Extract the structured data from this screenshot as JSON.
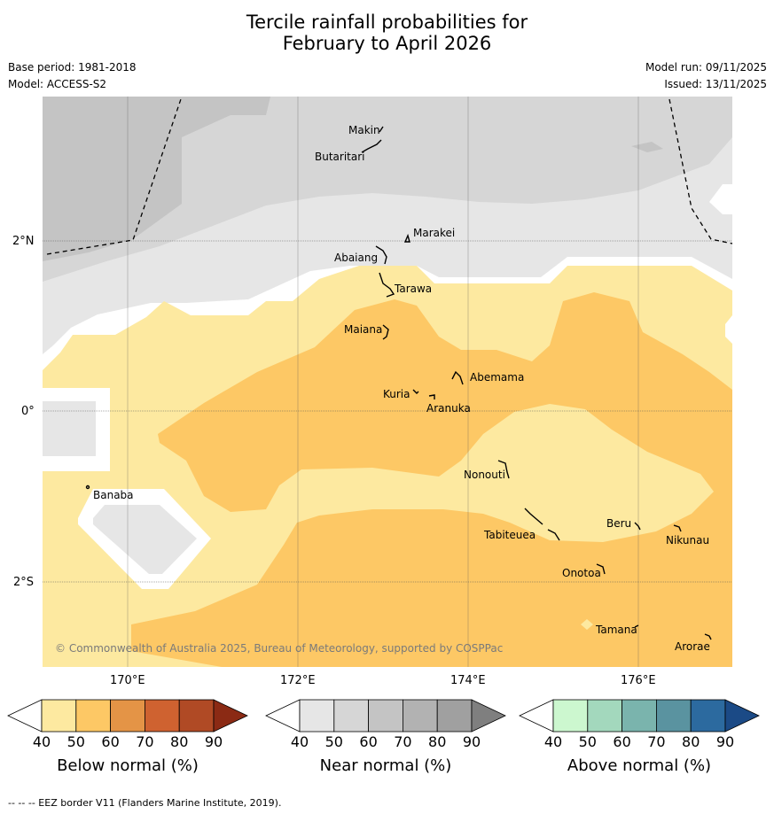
{
  "title_line1": "Tercile rainfall probabilities for",
  "title_line2": "February to April 2026",
  "base_period": "Base period: 1981-2018",
  "model": "Model: ACCESS-S2",
  "model_run": "Model run: 09/11/2025",
  "issued": "Issued: 13/11/2025",
  "copyright": "© Commonwealth of Australia 2025, Bureau of Meteorology, supported by COSPPac",
  "axes": {
    "lon_labels": [
      "170°E",
      "172°E",
      "174°E",
      "176°E"
    ],
    "lat_labels": [
      "2°N",
      "0°",
      "2°S"
    ]
  },
  "islands": [
    {
      "name": "Makin"
    },
    {
      "name": "Butaritari"
    },
    {
      "name": "Marakei"
    },
    {
      "name": "Abaiang"
    },
    {
      "name": "Tarawa"
    },
    {
      "name": "Maiana"
    },
    {
      "name": "Abemama"
    },
    {
      "name": "Kuria"
    },
    {
      "name": "Aranuka"
    },
    {
      "name": "Nonouti"
    },
    {
      "name": "Banaba"
    },
    {
      "name": "Beru"
    },
    {
      "name": "Tabiteuea"
    },
    {
      "name": "Nikunau"
    },
    {
      "name": "Onotoa"
    },
    {
      "name": "Tamana"
    },
    {
      "name": "Arorae"
    }
  ],
  "colorbars": [
    {
      "title": "Below normal (%)",
      "ticks": [
        "40",
        "50",
        "60",
        "70",
        "80",
        "90"
      ],
      "colors": [
        "#fde9a0",
        "#fdc865",
        "#e49446",
        "#cf6230",
        "#b04a25",
        "#8b2a14"
      ]
    },
    {
      "title": "Near normal (%)",
      "ticks": [
        "40",
        "50",
        "60",
        "70",
        "80",
        "90"
      ],
      "colors": [
        "#e6e6e6",
        "#d6d6d6",
        "#c4c4c4",
        "#b2b2b2",
        "#a0a0a0",
        "#7f7f7f"
      ]
    },
    {
      "title": "Above normal (%)",
      "ticks": [
        "40",
        "50",
        "60",
        "70",
        "80",
        "90"
      ],
      "colors": [
        "#ccf7cf",
        "#a3d8bd",
        "#7ab4ad",
        "#5a93a0",
        "#2c6a9f",
        "#1b4a86"
      ]
    }
  ],
  "footer": "--  --  -- EEZ border V11 (Flanders Marine Institute, 2019)."
}
